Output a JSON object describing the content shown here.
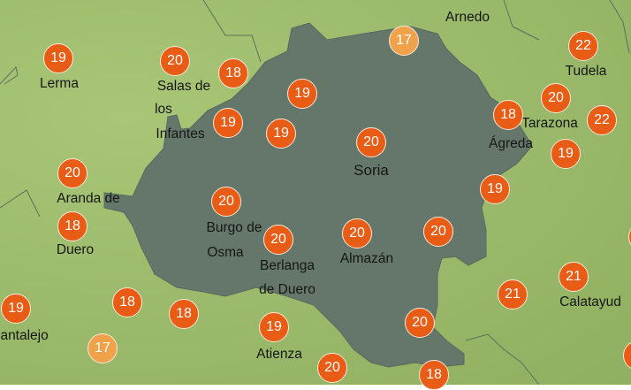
{
  "map": {
    "colors": {
      "land": "#9dbb6c",
      "province": "#65766a",
      "marker": "#e95c15",
      "marker_light": "#f0a24a",
      "marker_text": "#ffffff"
    },
    "temperatures": [
      19,
      20,
      18,
      19,
      19,
      19,
      20,
      17,
      18,
      20,
      22,
      22,
      19,
      19,
      20,
      20,
      18,
      20,
      20,
      20,
      21,
      21,
      19,
      18,
      18,
      19,
      20,
      17,
      20,
      18
    ],
    "places": [
      "Lerma",
      "Salas de",
      "los",
      "Infantes",
      "Arnedo",
      "Tudela",
      "Tarazona",
      "Ágreda",
      "Soria",
      "Aranda de",
      "Duero",
      "Burgo de",
      "Osma",
      "Berlanga",
      "de Duero",
      "Almazán",
      "Calatayud",
      "Cantalejo",
      "Atienza"
    ]
  }
}
